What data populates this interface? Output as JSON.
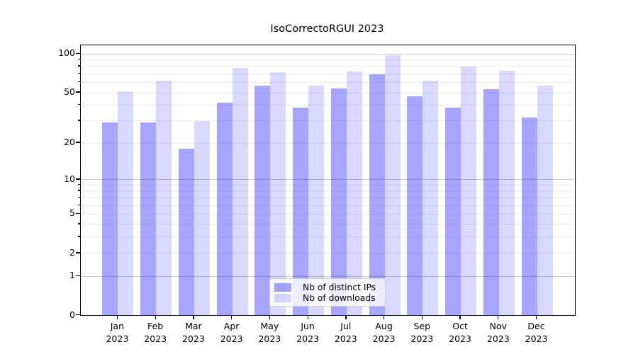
{
  "chart_data": {
    "type": "bar",
    "title": "IsoCorrectoRGUI 2023",
    "categories": [
      "Jan",
      "Feb",
      "Mar",
      "Apr",
      "May",
      "Jun",
      "Jul",
      "Aug",
      "Sep",
      "Oct",
      "Nov",
      "Dec"
    ],
    "x_year_label": "2023",
    "series": [
      {
        "name": "Nb of distinct IPs",
        "color": "#0000ff",
        "alpha": 0.35,
        "values": [
          29,
          29,
          18,
          42,
          57,
          38,
          54,
          70,
          47,
          38,
          53,
          32
        ]
      },
      {
        "name": "Nb of downloads",
        "color": "#0000ff",
        "alpha": 0.15,
        "values": [
          51,
          62,
          30,
          78,
          72,
          57,
          73,
          98,
          62,
          80,
          74,
          57
        ]
      }
    ],
    "y_scale": "log10(value+1)",
    "y_ticks": [
      100,
      50,
      20,
      10,
      5,
      2,
      1,
      0
    ],
    "y_major_gridlines": [
      1,
      10,
      100
    ],
    "y_minor_gridlines": [
      2,
      3,
      4,
      5,
      6,
      7,
      8,
      9,
      20,
      30,
      40,
      50,
      60,
      70,
      80,
      90
    ],
    "ylim": [
      0,
      117
    ],
    "grid": true,
    "legend_position": "lower center",
    "axis_color": "#000000",
    "major_grid_color": "#c9c9c9",
    "minor_grid_color": "#ececec"
  }
}
